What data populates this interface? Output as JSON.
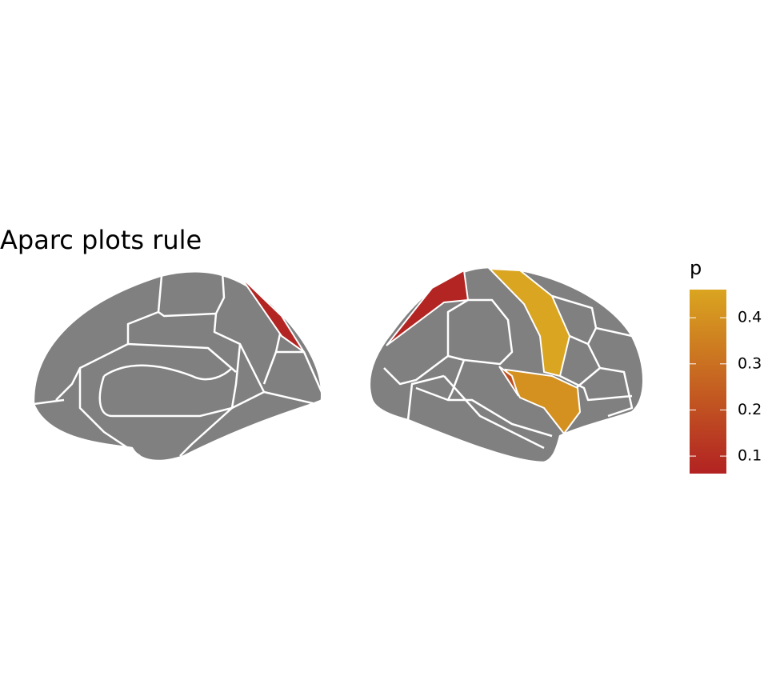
{
  "chart_data": {
    "type": "brain",
    "title": "Aparc plots rule",
    "legend_title": "p",
    "values": [
      0.07,
      0.07,
      0.46,
      0.4,
      0.2
    ],
    "colors": [
      "#b22222",
      "#daa520"
    ],
    "clim": [
      0.062,
      0.461
    ],
    "cticks": [
      0.1,
      0.2,
      0.3,
      0.4
    ]
  }
}
